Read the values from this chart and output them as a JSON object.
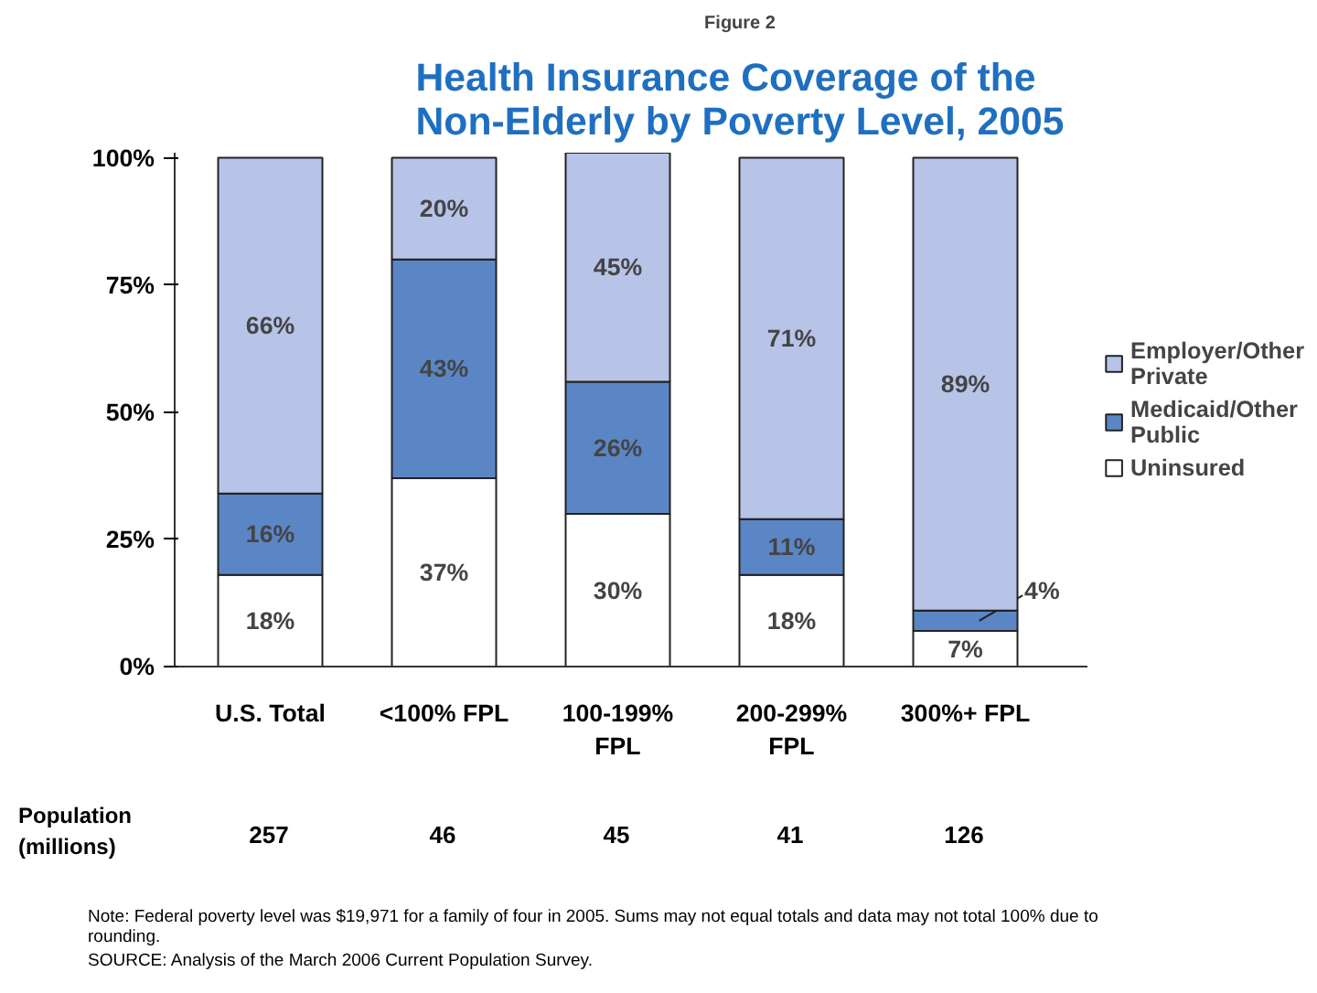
{
  "chart_data": {
    "type": "bar",
    "stacked": true,
    "subtitle": "Figure 2",
    "title": "Health Insurance Coverage of the Non-Elderly by Poverty Level, 2005",
    "categories": [
      "U.S. Total",
      "<100% FPL",
      "100-199% FPL",
      "200-299% FPL",
      "300%+ FPL"
    ],
    "series": [
      {
        "name": "Uninsured",
        "color": "#ffffff",
        "values": [
          18,
          37,
          30,
          18,
          7
        ],
        "value_labels": [
          "18%",
          "37%",
          "30%",
          "18%",
          "7%"
        ]
      },
      {
        "name": "Medicaid/Other Public",
        "color": "#5b86c6",
        "values": [
          16,
          43,
          26,
          11,
          4
        ],
        "value_labels": [
          "16%",
          "43%",
          "26%",
          "11%",
          "4%"
        ]
      },
      {
        "name": "Employer/Other Private",
        "color": "#b7c4e8",
        "values": [
          66,
          20,
          45,
          71,
          89
        ],
        "value_labels": [
          "66%",
          "20%",
          "45%",
          "71%",
          "89%"
        ]
      }
    ],
    "ylim": [
      0,
      101
    ],
    "yticks": [
      {
        "value": 0,
        "label": "0%"
      },
      {
        "value": 25,
        "label": "25%"
      },
      {
        "value": 50,
        "label": "50%"
      },
      {
        "value": 75,
        "label": "75%"
      },
      {
        "value": 100,
        "label": "100%"
      }
    ],
    "legend": "right",
    "grid": false,
    "annotations": [
      "Population (millions)",
      "257",
      "46",
      "45",
      "41",
      "126",
      "Note: Federal poverty level was $19,971 for a family of four in 2005. Sums may not equal totals and data may not total 100% due to rounding.",
      "SOURCE: Analysis of the March 2006 Current Population Survey."
    ]
  }
}
